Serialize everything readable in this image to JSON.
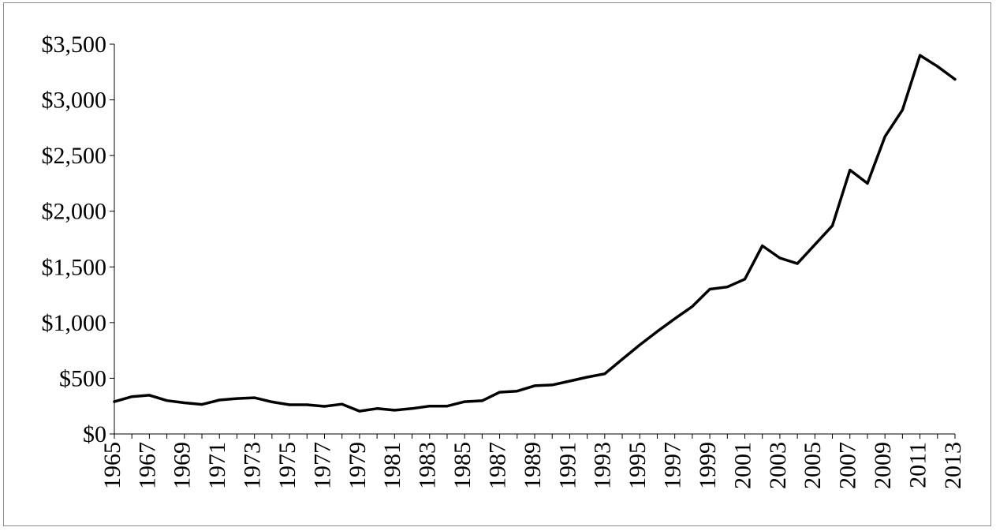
{
  "chart_data": {
    "type": "line",
    "title": "",
    "xlabel": "",
    "ylabel": "",
    "x": [
      1965,
      1966,
      1967,
      1968,
      1969,
      1970,
      1971,
      1972,
      1973,
      1974,
      1975,
      1976,
      1977,
      1978,
      1979,
      1980,
      1981,
      1982,
      1983,
      1984,
      1985,
      1986,
      1987,
      1988,
      1989,
      1990,
      1991,
      1992,
      1993,
      1994,
      1995,
      1996,
      1997,
      1998,
      1999,
      2000,
      2001,
      2002,
      2003,
      2004,
      2005,
      2006,
      2007,
      2008,
      2009,
      2010,
      2011,
      2012,
      2013
    ],
    "series": [
      {
        "values": [
          290,
          335,
          348,
          300,
          280,
          265,
          305,
          318,
          325,
          288,
          262,
          262,
          248,
          268,
          205,
          228,
          213,
          228,
          250,
          250,
          290,
          298,
          375,
          385,
          433,
          440,
          475,
          510,
          540,
          670,
          800,
          920,
          1035,
          1145,
          1300,
          1320,
          1390,
          1690,
          1580,
          1530,
          1700,
          1870,
          2370,
          2250,
          2670,
          2910,
          3400,
          3300,
          3185
        ]
      }
    ],
    "ylim": [
      0,
      3500
    ],
    "y_ticks": [
      0,
      500,
      1000,
      1500,
      2000,
      2500,
      3000,
      3500
    ],
    "y_tick_labels": [
      "$0",
      "$500",
      "$1,000",
      "$1,500",
      "$2,000",
      "$2,500",
      "$3,000",
      "$3,500"
    ],
    "x_tick_labels": [
      "1965",
      "1967",
      "1969",
      "1971",
      "1973",
      "1975",
      "1977",
      "1979",
      "1981",
      "1983",
      "1985",
      "1987",
      "1989",
      "1991",
      "1993",
      "1995",
      "1997",
      "1999",
      "2001",
      "2003",
      "2005",
      "2007",
      "2009",
      "2011",
      "2013"
    ],
    "grid": false,
    "legend": "none",
    "line_color": "#000000"
  }
}
